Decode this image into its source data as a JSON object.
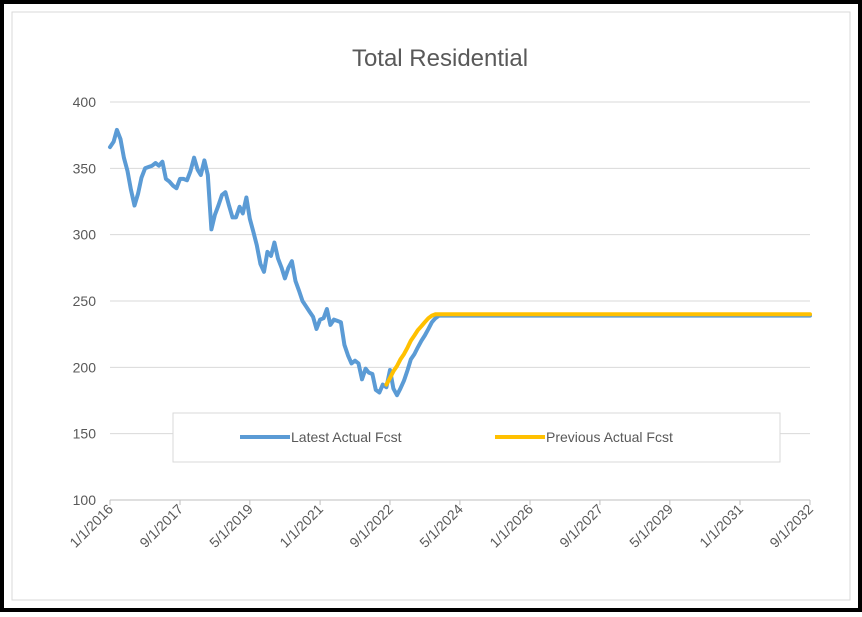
{
  "chart_data": {
    "type": "line",
    "title": "Total Residential",
    "x": [
      "1/1/2016",
      "2/1/2016",
      "3/1/2016",
      "4/1/2016",
      "5/1/2016",
      "6/1/2016",
      "7/1/2016",
      "8/1/2016",
      "9/1/2016",
      "10/1/2016",
      "11/1/2016",
      "12/1/2016",
      "1/1/2017",
      "2/1/2017",
      "3/1/2017",
      "4/1/2017",
      "5/1/2017",
      "6/1/2017",
      "7/1/2017",
      "8/1/2017",
      "9/1/2017",
      "10/1/2017",
      "11/1/2017",
      "12/1/2017",
      "1/1/2018",
      "2/1/2018",
      "3/1/2018",
      "4/1/2018",
      "5/1/2018",
      "6/1/2018",
      "7/1/2018",
      "8/1/2018",
      "9/1/2018",
      "10/1/2018",
      "11/1/2018",
      "12/1/2018",
      "1/1/2019",
      "2/1/2019",
      "3/1/2019",
      "4/1/2019",
      "5/1/2019",
      "6/1/2019",
      "7/1/2019",
      "8/1/2019",
      "9/1/2019",
      "10/1/2019",
      "11/1/2019",
      "12/1/2019",
      "1/1/2020",
      "2/1/2020",
      "3/1/2020",
      "4/1/2020",
      "5/1/2020",
      "6/1/2020",
      "7/1/2020",
      "8/1/2020",
      "9/1/2020",
      "10/1/2020",
      "11/1/2020",
      "12/1/2020",
      "1/1/2021",
      "2/1/2021",
      "3/1/2021",
      "4/1/2021",
      "5/1/2021",
      "6/1/2021",
      "7/1/2021",
      "8/1/2021",
      "9/1/2021",
      "10/1/2021",
      "11/1/2021",
      "12/1/2021",
      "1/1/2022",
      "2/1/2022",
      "3/1/2022",
      "4/1/2022",
      "5/1/2022",
      "6/1/2022",
      "7/1/2022",
      "8/1/2022",
      "9/1/2022",
      "10/1/2022",
      "11/1/2022",
      "12/1/2022",
      "1/1/2023",
      "2/1/2023",
      "3/1/2023",
      "4/1/2023",
      "5/1/2023",
      "6/1/2023",
      "7/1/2023",
      "8/1/2023",
      "9/1/2023",
      "10/1/2023",
      "11/1/2023",
      "12/1/2023",
      "9/1/2032"
    ],
    "series": [
      {
        "name": "Latest Actual Fcst",
        "color": "#5b9bd5",
        "values": [
          366,
          370,
          379,
          372,
          358,
          348,
          334,
          322,
          331,
          343,
          350,
          351,
          352,
          354,
          352,
          355,
          342,
          340,
          337,
          335,
          342,
          342,
          341,
          348,
          358,
          349,
          345,
          356,
          345,
          304,
          315,
          322,
          330,
          332,
          322,
          313,
          313,
          321,
          316,
          328,
          312,
          302,
          292,
          278,
          272,
          287,
          284,
          294,
          282,
          275,
          267,
          275,
          280,
          265,
          258,
          250,
          246,
          242,
          238,
          229,
          236,
          237,
          244,
          232,
          236,
          235,
          234,
          217,
          209,
          203,
          205,
          203,
          191,
          199,
          196,
          195,
          183,
          181,
          187,
          185,
          198,
          184,
          179,
          184,
          190,
          198,
          206,
          210,
          215,
          220,
          224,
          229,
          234,
          237,
          239,
          239,
          239
        ]
      },
      {
        "name": "Previous Actual Fcst",
        "color": "#ffc000",
        "values": [
          null,
          null,
          null,
          null,
          null,
          null,
          null,
          null,
          null,
          null,
          null,
          null,
          null,
          null,
          null,
          null,
          null,
          null,
          null,
          null,
          null,
          null,
          null,
          null,
          null,
          null,
          null,
          null,
          null,
          null,
          null,
          null,
          null,
          null,
          null,
          null,
          null,
          null,
          null,
          null,
          null,
          null,
          null,
          null,
          null,
          null,
          null,
          null,
          null,
          null,
          null,
          null,
          null,
          null,
          null,
          null,
          null,
          null,
          null,
          null,
          null,
          null,
          null,
          null,
          null,
          null,
          null,
          null,
          null,
          null,
          null,
          null,
          null,
          null,
          null,
          null,
          null,
          null,
          null,
          187,
          192,
          197,
          201,
          206,
          210,
          215,
          220,
          224,
          228,
          231,
          234,
          237,
          239,
          240,
          240,
          240,
          240
        ]
      }
    ],
    "xlim": [
      "1/1/2016",
      "9/1/2032"
    ],
    "xticks": [
      "1/1/2016",
      "9/1/2017",
      "5/1/2019",
      "1/1/2021",
      "9/1/2022",
      "5/1/2024",
      "1/1/2026",
      "9/1/2027",
      "5/1/2029",
      "1/1/2031",
      "9/1/2032"
    ],
    "ylim": [
      100,
      400
    ],
    "yticks": [
      100,
      150,
      200,
      250,
      300,
      350,
      400
    ],
    "grid": true
  }
}
